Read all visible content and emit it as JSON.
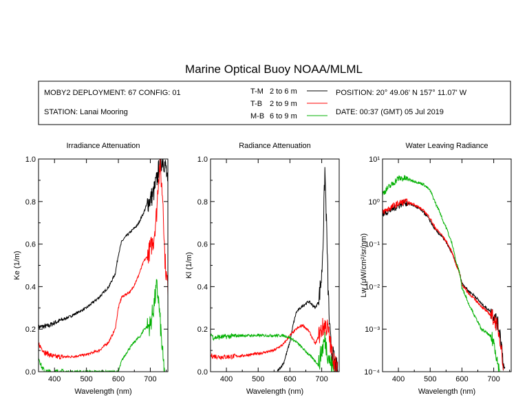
{
  "header": {
    "title": "Marine Optical Buoy NOAA/MLML",
    "deployment": "MOBY2 DEPLOYMENT: 67 CONFIG: 01",
    "station": "STATION: Lanai Mooring",
    "position": "POSITION: 20° 49.06' N   157° 11.07' W",
    "date": "DATE: 00:37 (GMT) 05 Jul 2019"
  },
  "legend": [
    {
      "code": "T-M",
      "range": "2 to 6  m",
      "color": "#000000"
    },
    {
      "code": "T-B",
      "range": "2 to 9  m",
      "color": "#ff0000"
    },
    {
      "code": "M-B",
      "range": "6 to 9  m",
      "color": "#00b000"
    }
  ],
  "chart_data": [
    {
      "type": "line",
      "title": "Irradiance Attenuation",
      "xlabel": "Wavelength (nm)",
      "ylabel": "Ke  (1/m)",
      "xlim": [
        350,
        755
      ],
      "ylim": [
        0,
        1.0
      ],
      "xticks": [
        "400",
        "500",
        "600",
        "700"
      ],
      "yticks": [
        "0.0",
        "0.2",
        "0.4",
        "0.6",
        "0.8",
        "1.0"
      ],
      "series": [
        {
          "name": "T-M",
          "color": "#000000",
          "x": [
            350,
            380,
            400,
            450,
            500,
            540,
            570,
            590,
            600,
            610,
            620,
            640,
            660,
            680,
            690,
            700,
            710,
            720,
            730,
            740,
            750,
            755
          ],
          "y": [
            0.21,
            0.215,
            0.23,
            0.26,
            0.3,
            0.35,
            0.4,
            0.46,
            0.55,
            0.61,
            0.63,
            0.66,
            0.69,
            0.75,
            0.79,
            0.81,
            0.84,
            0.9,
            0.98,
            1.0,
            0.95,
            0.85
          ]
        },
        {
          "name": "T-B",
          "color": "#ff0000",
          "x": [
            350,
            370,
            400,
            450,
            500,
            540,
            570,
            590,
            600,
            610,
            620,
            640,
            660,
            680,
            690,
            700,
            710,
            720,
            725,
            730,
            740,
            745,
            750,
            755
          ],
          "y": [
            0.13,
            0.09,
            0.07,
            0.07,
            0.08,
            0.1,
            0.14,
            0.2,
            0.3,
            0.35,
            0.36,
            0.38,
            0.44,
            0.52,
            0.54,
            0.58,
            0.62,
            0.75,
            0.9,
            0.97,
            0.8,
            0.55,
            0.45,
            0.4
          ]
        },
        {
          "name": "M-B",
          "color": "#00b000",
          "x": [
            350,
            360,
            370,
            600,
            610,
            630,
            650,
            670,
            680,
            700,
            710,
            720,
            725,
            730,
            735,
            740,
            745
          ],
          "y": [
            0.07,
            0.02,
            0.0,
            0.0,
            0.05,
            0.1,
            0.14,
            0.17,
            0.2,
            0.22,
            0.3,
            0.4,
            0.35,
            0.25,
            0.15,
            0.05,
            0.0
          ]
        }
      ]
    },
    {
      "type": "line",
      "title": "Radiance Attenuation",
      "xlabel": "Wavelength (nm)",
      "ylabel": "Kl  (1/m)",
      "xlim": [
        350,
        755
      ],
      "ylim": [
        0,
        1.0
      ],
      "xticks": [
        "400",
        "500",
        "600",
        "700"
      ],
      "yticks": [
        "0.0",
        "0.2",
        "0.4",
        "0.6",
        "0.8",
        "1.0"
      ],
      "series": [
        {
          "name": "T-M",
          "color": "#000000",
          "x": [
            560,
            580,
            600,
            610,
            620,
            640,
            660,
            680,
            690,
            700,
            705,
            710,
            715,
            720,
            725,
            730,
            740,
            750
          ],
          "y": [
            0.0,
            0.04,
            0.14,
            0.22,
            0.28,
            0.31,
            0.33,
            0.3,
            0.33,
            0.45,
            0.65,
            0.95,
            0.7,
            0.4,
            0.2,
            0.1,
            0.05,
            0.0
          ]
        },
        {
          "name": "T-B",
          "color": "#ff0000",
          "x": [
            350,
            380,
            400,
            450,
            500,
            550,
            580,
            600,
            620,
            640,
            660,
            680,
            700,
            710,
            720,
            730,
            740,
            750
          ],
          "y": [
            0.075,
            0.07,
            0.07,
            0.075,
            0.085,
            0.1,
            0.13,
            0.17,
            0.2,
            0.22,
            0.19,
            0.13,
            0.2,
            0.22,
            0.2,
            0.1,
            0.05,
            0.0
          ]
        },
        {
          "name": "M-B",
          "color": "#00b000",
          "x": [
            350,
            360,
            400,
            450,
            500,
            550,
            580,
            600,
            620,
            640,
            660,
            680,
            690,
            700,
            710,
            720,
            730,
            740
          ],
          "y": [
            0.18,
            0.16,
            0.165,
            0.17,
            0.17,
            0.17,
            0.17,
            0.16,
            0.14,
            0.11,
            0.08,
            0.05,
            0.03,
            0.1,
            0.15,
            0.08,
            0.03,
            0.0
          ]
        }
      ]
    },
    {
      "type": "line",
      "title": "Water Leaving Radiance",
      "xlabel": "Wavelength (nm)",
      "ylabel": "Lw  (μW/cm²/sr/nm)",
      "log_y": true,
      "xlim": [
        350,
        755
      ],
      "ylim": [
        0.0001,
        10
      ],
      "xticks": [
        "400",
        "500",
        "600",
        "700"
      ],
      "yticks": [
        "10⁻⁴",
        "10⁻³",
        "10⁻²",
        "10⁻¹",
        "10⁰",
        "10¹"
      ],
      "series": [
        {
          "name": "T-M",
          "color": "#000000",
          "x": [
            350,
            380,
            400,
            420,
            450,
            480,
            500,
            510,
            520,
            540,
            560,
            580,
            600,
            620,
            640,
            660,
            680,
            700,
            710,
            720,
            725,
            730,
            735
          ],
          "y": [
            0.5,
            0.65,
            0.8,
            0.95,
            0.8,
            0.55,
            0.35,
            0.25,
            0.2,
            0.14,
            0.08,
            0.035,
            0.012,
            0.008,
            0.006,
            0.004,
            0.003,
            0.0022,
            0.0015,
            0.0008,
            0.0004,
            0.00015,
            0.0001
          ]
        },
        {
          "name": "T-B",
          "color": "#ff0000",
          "x": [
            350,
            380,
            400,
            420,
            450,
            480,
            500,
            510,
            520,
            540,
            560,
            580,
            600,
            620,
            640,
            660,
            680,
            700,
            710,
            720,
            725,
            730
          ],
          "y": [
            0.55,
            0.75,
            0.9,
            1.0,
            0.85,
            0.6,
            0.4,
            0.28,
            0.22,
            0.15,
            0.085,
            0.035,
            0.011,
            0.007,
            0.005,
            0.0035,
            0.0025,
            0.0018,
            0.0012,
            0.0006,
            0.0003,
            0.0001
          ]
        },
        {
          "name": "M-B",
          "color": "#00b000",
          "x": [
            350,
            380,
            400,
            420,
            450,
            480,
            500,
            510,
            520,
            540,
            560,
            580,
            600,
            620,
            640,
            660,
            680,
            700,
            710,
            715,
            720
          ],
          "y": [
            1.5,
            2.5,
            3.5,
            3.5,
            3.0,
            2.5,
            1.8,
            1.2,
            0.8,
            0.35,
            0.15,
            0.04,
            0.009,
            0.004,
            0.002,
            0.001,
            0.0008,
            0.0005,
            0.0002,
            0.00012,
            0.0001
          ]
        }
      ]
    }
  ]
}
